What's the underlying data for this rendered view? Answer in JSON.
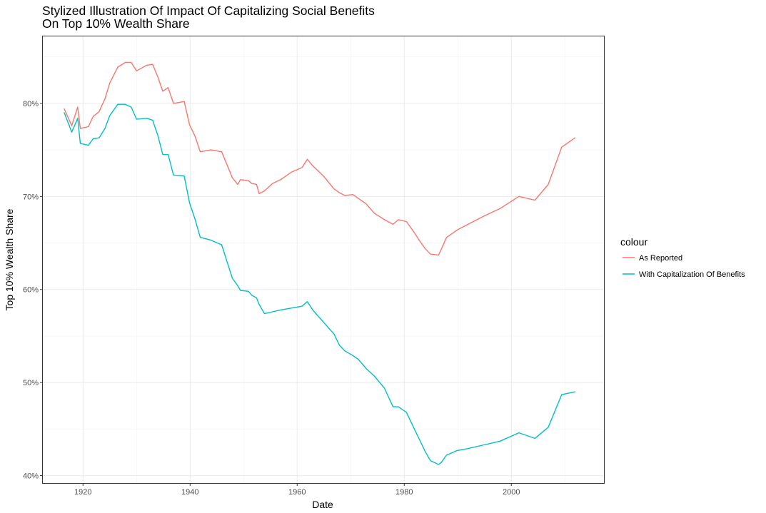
{
  "chart_data": {
    "type": "line",
    "title": [
      "Stylized Illustration Of Impact Of Capitalizing Social Benefits",
      "On Top 10% Wealth Share"
    ],
    "xlabel": "Date",
    "ylabel": "Top 10% Wealth Share",
    "xlim": [
      1912.5,
      2017.3
    ],
    "ylim": [
      0.392,
      0.872
    ],
    "x_ticks": [
      1920,
      1940,
      1960,
      1980,
      2000
    ],
    "x_tick_labels": [
      "1920",
      "1940",
      "1960",
      "1980",
      "2000"
    ],
    "y_ticks": [
      0.4,
      0.5,
      0.6,
      0.7,
      0.8
    ],
    "y_tick_labels": [
      "40%",
      "50%",
      "60%",
      "70%",
      "80%"
    ],
    "grid": true,
    "legend": {
      "title": "colour",
      "position": "right"
    },
    "series": [
      {
        "name": "As Reported",
        "color": "#F8766D",
        "x": [
          1916.5,
          1917.9,
          1919.0,
          1919.5,
          1921.0,
          1921.9,
          1923.0,
          1924.1,
          1925.0,
          1926.5,
          1927.9,
          1929.0,
          1930.0,
          1931.9,
          1933.0,
          1934.0,
          1934.9,
          1935.9,
          1936.9,
          1938.9,
          1939.9,
          1940.9,
          1941.9,
          1943.9,
          1945.9,
          1947.9,
          1948.9,
          1949.4,
          1950.9,
          1951.5,
          1952.4,
          1952.9,
          1953.9,
          1955.4,
          1956.9,
          1958.9,
          1960.9,
          1961.9,
          1962.9,
          1964.9,
          1966.9,
          1967.9,
          1968.9,
          1970.4,
          1971.4,
          1972.9,
          1974.4,
          1976.3,
          1977.9,
          1978.9,
          1980.4,
          1981.9,
          1982.9,
          1983.9,
          1984.9,
          1986.4,
          1986.9,
          1987.9,
          1989.9,
          1991.9,
          1994.9,
          1997.9,
          2001.4,
          2004.4,
          2006.9,
          2009.4,
          2011.9
        ],
        "y": [
          0.794,
          0.776,
          0.796,
          0.773,
          0.775,
          0.786,
          0.791,
          0.805,
          0.822,
          0.839,
          0.844,
          0.844,
          0.835,
          0.841,
          0.842,
          0.828,
          0.813,
          0.817,
          0.8,
          0.802,
          0.777,
          0.765,
          0.748,
          0.75,
          0.748,
          0.72,
          0.713,
          0.718,
          0.717,
          0.714,
          0.713,
          0.703,
          0.706,
          0.714,
          0.718,
          0.726,
          0.731,
          0.74,
          0.733,
          0.722,
          0.708,
          0.704,
          0.701,
          0.702,
          0.698,
          0.692,
          0.682,
          0.675,
          0.67,
          0.675,
          0.673,
          0.661,
          0.652,
          0.644,
          0.638,
          0.637,
          0.643,
          0.656,
          0.664,
          0.67,
          0.679,
          0.687,
          0.7,
          0.696,
          0.713,
          0.753,
          0.763
        ]
      },
      {
        "name": "With Capitalization Of Benefits",
        "color": "#00BFC4",
        "x": [
          1916.5,
          1917.9,
          1919.0,
          1919.5,
          1921.0,
          1921.9,
          1923.0,
          1924.1,
          1925.0,
          1926.5,
          1927.9,
          1929.0,
          1930.0,
          1931.9,
          1933.0,
          1934.0,
          1934.9,
          1935.9,
          1936.9,
          1938.9,
          1939.9,
          1940.9,
          1941.9,
          1943.9,
          1945.9,
          1947.9,
          1948.9,
          1949.4,
          1950.9,
          1951.5,
          1952.4,
          1952.9,
          1953.9,
          1955.4,
          1956.9,
          1958.9,
          1960.9,
          1961.9,
          1962.9,
          1964.9,
          1966.9,
          1967.9,
          1968.9,
          1970.4,
          1971.4,
          1972.9,
          1974.4,
          1976.3,
          1977.9,
          1978.9,
          1980.4,
          1981.9,
          1982.9,
          1983.9,
          1984.9,
          1986.4,
          1986.9,
          1987.9,
          1989.9,
          1991.9,
          1994.9,
          1997.9,
          2001.4,
          2004.4,
          2006.9,
          2009.4,
          2011.9
        ],
        "y": [
          0.79,
          0.769,
          0.784,
          0.757,
          0.755,
          0.762,
          0.763,
          0.773,
          0.787,
          0.799,
          0.799,
          0.796,
          0.783,
          0.784,
          0.782,
          0.765,
          0.745,
          0.745,
          0.723,
          0.722,
          0.693,
          0.676,
          0.656,
          0.653,
          0.648,
          0.612,
          0.604,
          0.599,
          0.598,
          0.594,
          0.591,
          0.584,
          0.574,
          0.576,
          0.578,
          0.58,
          0.582,
          0.587,
          0.578,
          0.565,
          0.552,
          0.54,
          0.534,
          0.529,
          0.525,
          0.515,
          0.507,
          0.494,
          0.474,
          0.474,
          0.468,
          0.45,
          0.438,
          0.426,
          0.416,
          0.412,
          0.414,
          0.422,
          0.427,
          0.429,
          0.433,
          0.437,
          0.446,
          0.44,
          0.452,
          0.487,
          0.49
        ]
      }
    ]
  }
}
